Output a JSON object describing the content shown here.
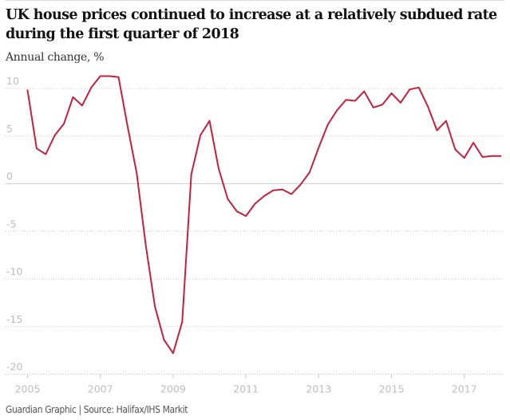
{
  "header": {
    "title": "UK house prices continued to increase at a relatively subdued rate during the first quarter of 2018",
    "subtitle": "Annual change, %"
  },
  "footer": {
    "source": "Guardian Graphic | Source: Halifax/IHS Markit"
  },
  "colors": {
    "line": "#c7203d",
    "grid": "#c8c8c8",
    "zero_line": "#cfcfcf",
    "tick_text": "#bdbdbd"
  },
  "chart_data": {
    "type": "line",
    "title": "UK house prices continued to increase at a relatively subdued rate during the first quarter of 2018",
    "ylabel": "Annual change, %",
    "xlabel": "",
    "ylim": [
      -20,
      10
    ],
    "xlim": [
      2005.0,
      2018.0
    ],
    "grid": true,
    "yticks": [
      10,
      5,
      0,
      -5,
      -10,
      -15,
      -20
    ],
    "ytick_labels": [
      "10",
      "5",
      "0",
      "-5",
      "-10",
      "-15",
      "-20"
    ],
    "xticks": [
      2005,
      2007,
      2009,
      2011,
      2013,
      2015,
      2017
    ],
    "xtick_labels": [
      "2005",
      "2007",
      "2009",
      "2011",
      "2013",
      "2015",
      "2017"
    ],
    "series": [
      {
        "name": "Annual change in house prices (%)",
        "x_start": 2005.0,
        "x_step": 0.25,
        "values": [
          9.8,
          3.7,
          3.1,
          5.1,
          6.3,
          9.1,
          8.2,
          10.1,
          11.3,
          11.3,
          11.2,
          6.0,
          1.1,
          -6.5,
          -12.9,
          -16.4,
          -17.8,
          -14.5,
          1.0,
          5.1,
          6.6,
          1.6,
          -1.6,
          -2.9,
          -3.4,
          -2.1,
          -1.3,
          -0.7,
          -0.6,
          -1.1,
          -0.1,
          1.2,
          3.8,
          6.2,
          7.7,
          8.8,
          8.7,
          9.7,
          8.0,
          8.3,
          9.5,
          8.5,
          9.9,
          10.1,
          8.1,
          5.6,
          6.6,
          3.6,
          2.7,
          4.3,
          2.8,
          2.9,
          2.9
        ]
      }
    ]
  }
}
